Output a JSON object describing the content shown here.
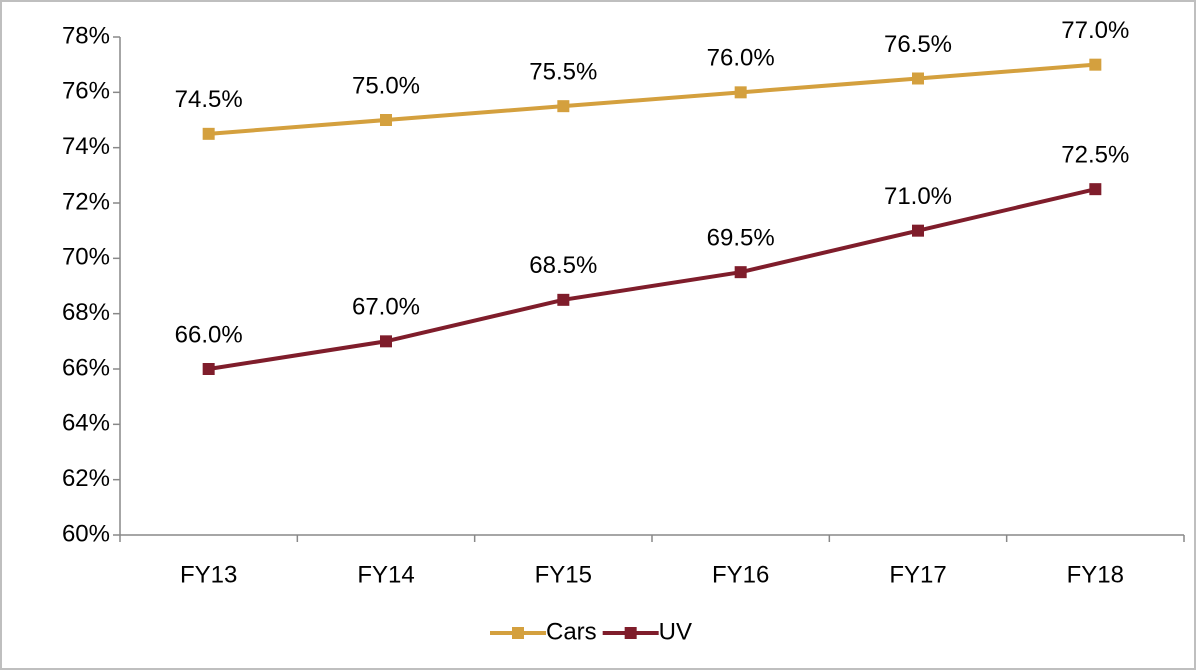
{
  "chart_data": {
    "type": "line",
    "categories": [
      "FY13",
      "FY14",
      "FY15",
      "FY16",
      "FY17",
      "FY18"
    ],
    "series": [
      {
        "name": "Cars",
        "color": "#d4a03e",
        "values": [
          74.5,
          75.0,
          75.5,
          76.0,
          76.5,
          77.0
        ],
        "value_labels": [
          "74.5%",
          "75.0%",
          "75.5%",
          "76.0%",
          "76.5%",
          "77.0%"
        ]
      },
      {
        "name": "UV",
        "color": "#7f1d2b",
        "values": [
          66.0,
          67.0,
          68.5,
          69.5,
          71.0,
          72.5
        ],
        "value_labels": [
          "66.0%",
          "67.0%",
          "68.5%",
          "69.5%",
          "71.0%",
          "72.5%"
        ]
      }
    ],
    "ylim": [
      60,
      78
    ],
    "yticks": [
      {
        "value": 60,
        "label": "60%"
      },
      {
        "value": 62,
        "label": "62%"
      },
      {
        "value": 64,
        "label": "64%"
      },
      {
        "value": 66,
        "label": "66%"
      },
      {
        "value": 68,
        "label": "68%"
      },
      {
        "value": 70,
        "label": "70%"
      },
      {
        "value": 72,
        "label": "72%"
      },
      {
        "value": 74,
        "label": "74%"
      },
      {
        "value": 76,
        "label": "76%"
      },
      {
        "value": 78,
        "label": "78%"
      }
    ],
    "grid": false,
    "legend": "bottom"
  }
}
